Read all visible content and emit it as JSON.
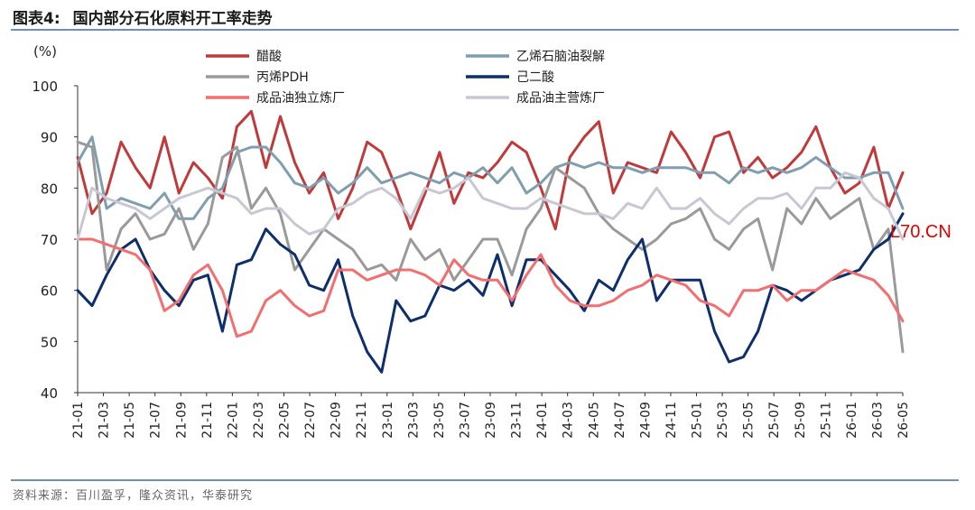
{
  "title": {
    "figure_label": "图表4:",
    "text": "国内部分石化原料开工率走势"
  },
  "source": "资料来源：百川盈孚，隆众资讯，华泰研究",
  "watermark": "L70.CN",
  "colors": {
    "rule": "#6f8fb4",
    "watermark": "#e00000"
  },
  "chart_data": {
    "type": "line",
    "title": "国内部分石化原料开工率走势",
    "ylabel": "(%)",
    "xlabel": "",
    "ylim": [
      40,
      100
    ],
    "yticks": [
      "40",
      "50",
      "60",
      "70",
      "80",
      "90",
      "100"
    ],
    "x_tick_labels": [
      "21-01",
      "21-03",
      "21-05",
      "21-07",
      "21-09",
      "21-11",
      "22-01",
      "22-03",
      "22-05",
      "22-07",
      "22-09",
      "22-11",
      "23-01",
      "23-03",
      "23-05",
      "23-07",
      "23-09",
      "23-11",
      "24-01",
      "24-03",
      "24-05",
      "24-07",
      "24-09",
      "24-11",
      "25-01",
      "25-03",
      "25-05",
      "25-07",
      "25-09",
      "25-11",
      "26-01",
      "26-03",
      "26-05"
    ],
    "grid": false,
    "legend": "top-center",
    "series": [
      {
        "name": "醋酸",
        "color": "#c0393b",
        "values": [
          86,
          75,
          79,
          89,
          84,
          80,
          90,
          79,
          85,
          82,
          78,
          92,
          95,
          84,
          94,
          85,
          79,
          83,
          74,
          80,
          89,
          87,
          80,
          72,
          79,
          87,
          77,
          83,
          82,
          85,
          89,
          87,
          80,
          72,
          86,
          90,
          93,
          79,
          85,
          84,
          83,
          91,
          87,
          82,
          90,
          91,
          83,
          86,
          82,
          84,
          87,
          92,
          84,
          79,
          81,
          88,
          76,
          83
        ]
      },
      {
        "name": "乙烯石脑油裂解",
        "color": "#7f9fb0",
        "values": [
          85,
          90,
          76,
          78,
          77,
          76,
          79,
          74,
          74,
          78,
          80,
          87,
          88,
          88,
          85,
          81,
          80,
          82,
          79,
          81,
          84,
          81,
          82,
          83,
          82,
          81,
          83,
          82,
          84,
          81,
          84,
          79,
          81,
          84,
          85,
          84,
          85,
          84,
          84,
          83,
          84,
          84,
          84,
          83,
          83,
          81,
          84,
          83,
          84,
          83,
          84,
          86,
          84,
          82,
          82,
          83,
          83,
          76
        ]
      },
      {
        "name": "丙烯PDH",
        "color": "#9a9a9a",
        "values": [
          89,
          88,
          64,
          72,
          75,
          70,
          71,
          76,
          68,
          73,
          86,
          88,
          76,
          80,
          75,
          64,
          68,
          72,
          70,
          68,
          64,
          65,
          62,
          70,
          66,
          68,
          62,
          66,
          70,
          70,
          63,
          72,
          76,
          84,
          82,
          80,
          75,
          72,
          70,
          68,
          70,
          73,
          74,
          76,
          70,
          68,
          72,
          74,
          64,
          76,
          73,
          78,
          74,
          76,
          78,
          68,
          72,
          48
        ]
      },
      {
        "name": "己二酸",
        "color": "#0d2f6b",
        "values": [
          60,
          57,
          63,
          68,
          70,
          64,
          60,
          57,
          62,
          63,
          52,
          65,
          66,
          72,
          69,
          67,
          61,
          60,
          66,
          55,
          48,
          44,
          58,
          54,
          55,
          61,
          60,
          62,
          59,
          67,
          57,
          66,
          66,
          63,
          60,
          56,
          62,
          60,
          66,
          70,
          58,
          62,
          62,
          62,
          52,
          46,
          47,
          52,
          61,
          60,
          58,
          60,
          62,
          63,
          64,
          68,
          70,
          75
        ]
      },
      {
        "name": "成品油独立炼厂",
        "color": "#f36e6e",
        "values": [
          70,
          70,
          69,
          68,
          67,
          64,
          56,
          58,
          63,
          65,
          60,
          51,
          52,
          58,
          60,
          57,
          55,
          56,
          64,
          64,
          62,
          63,
          64,
          64,
          63,
          61,
          66,
          63,
          62,
          62,
          58,
          63,
          67,
          61,
          58,
          57,
          57,
          58,
          60,
          61,
          63,
          62,
          61,
          58,
          57,
          55,
          60,
          60,
          61,
          58,
          60,
          60,
          62,
          64,
          63,
          62,
          59,
          54
        ]
      },
      {
        "name": "成品油主营炼厂",
        "color": "#c7c8d4",
        "values": [
          70,
          80,
          78,
          77,
          76,
          74,
          76,
          78,
          79,
          80,
          79,
          78,
          75,
          76,
          76,
          73,
          71,
          72,
          76,
          77,
          79,
          80,
          78,
          74,
          80,
          79,
          80,
          82,
          78,
          77,
          76,
          76,
          78,
          77,
          76,
          75,
          75,
          74,
          77,
          76,
          80,
          76,
          76,
          78,
          75,
          73,
          76,
          78,
          78,
          79,
          76,
          80,
          80,
          83,
          82,
          78,
          76,
          70
        ]
      }
    ]
  }
}
